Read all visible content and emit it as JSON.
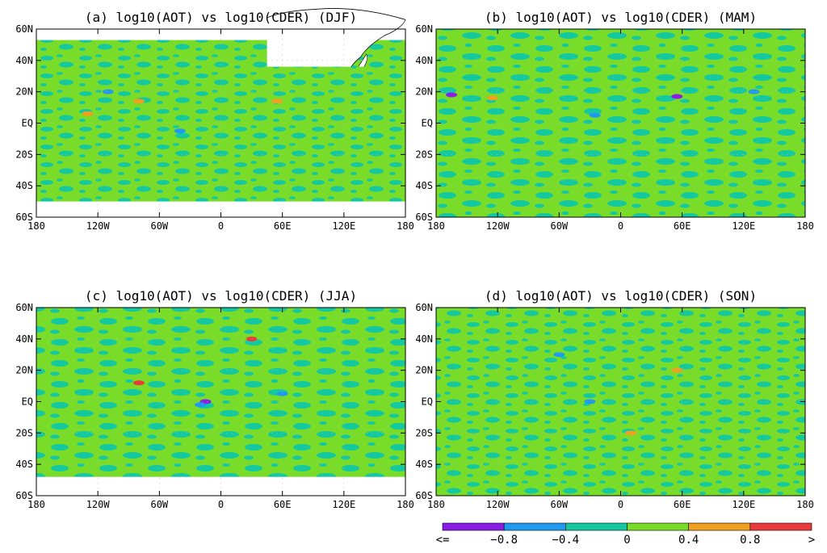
{
  "figure": {
    "panels": [
      {
        "title": "(a) log10(AOT) vs log10(CDER) (DJF)",
        "south_lat_limit": -50
      },
      {
        "title": "(b) log10(AOT) vs log10(CDER) (MAM)",
        "south_lat_limit": -60
      },
      {
        "title": "(c) log10(AOT) vs log10(CDER) (JJA)",
        "south_lat_limit": -48
      },
      {
        "title": "(d) log10(AOT) vs log10(CDER) (SON)",
        "south_lat_limit": -60
      }
    ],
    "lat_ticks": [
      "60N",
      "40N",
      "20N",
      "EQ",
      "20S",
      "40S",
      "60S"
    ],
    "lon_ticks": [
      "180",
      "120W",
      "60W",
      "0",
      "60E",
      "120E",
      "180"
    ],
    "lat_range": [
      -60,
      60
    ],
    "lon_range": [
      -180,
      180
    ],
    "colorbar": {
      "labels": [
        "<=",
        "−0.8",
        "−0.4",
        "0",
        "0.4",
        "0.8",
        ">"
      ],
      "colors": [
        "#8a1ee6",
        "#1f9af0",
        "#14c8a0",
        "#78dc28",
        "#f0a01e",
        "#eb3a3a"
      ],
      "bin_edges": [
        -0.8,
        -0.4,
        0,
        0.4,
        0.8
      ]
    }
  },
  "palette": {
    "dominant": "#78dc28",
    "secondary": "#14c8a0",
    "land": "#ffffff",
    "coast": "#000000"
  }
}
